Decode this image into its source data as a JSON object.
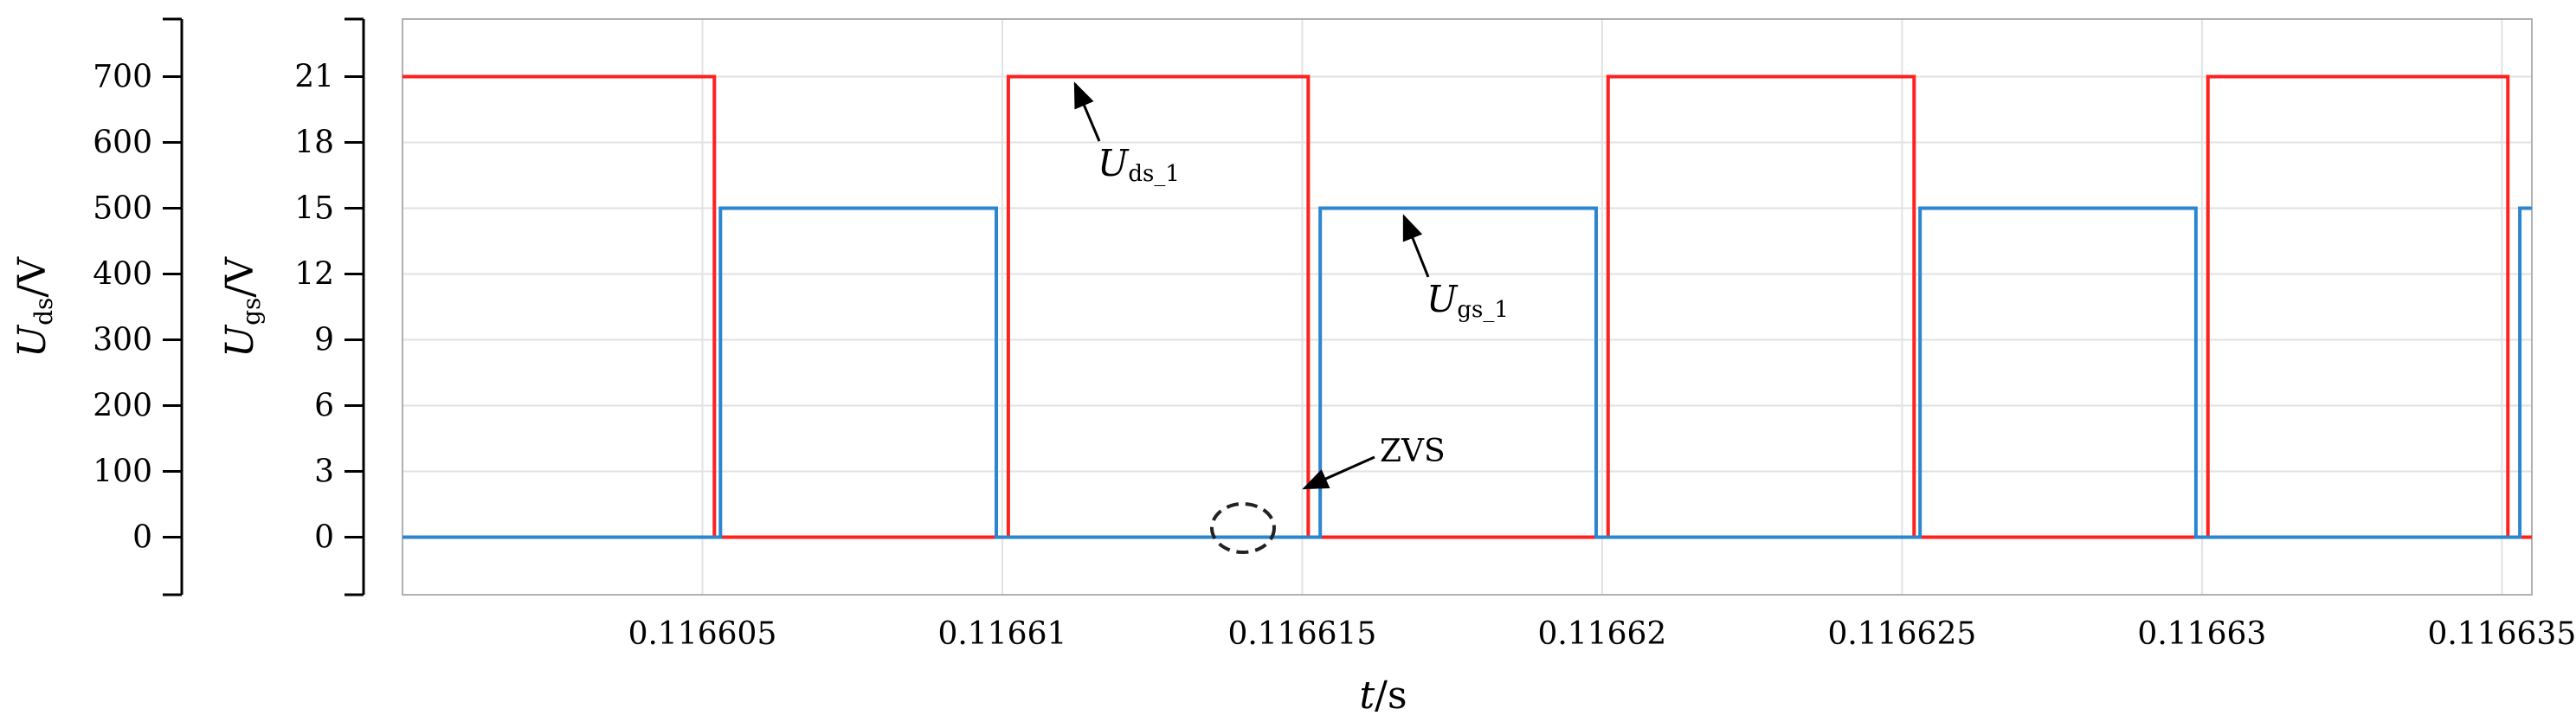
{
  "chart_data": {
    "type": "line",
    "title": "",
    "x": [
      0.1166,
      0.1166052,
      0.1166053,
      0.11661,
      0.1166101,
      0.116615,
      0.1166151,
      0.11662,
      0.1166201,
      0.1166252,
      0.1166253,
      0.11663,
      0.1166301,
      0.116635,
      0.1166351
    ],
    "series": [
      {
        "name": "U_ds_1",
        "axis": "left",
        "color": "#ff2020",
        "x": [
          0.1166,
          0.1166052,
          0.1166052,
          0.1166101,
          0.1166101,
          0.1166151,
          0.1166151,
          0.1166201,
          0.1166201,
          0.1166252,
          0.1166252,
          0.1166301,
          0.1166301,
          0.1166351,
          0.1166351,
          0.1166355
        ],
        "values": [
          700,
          700,
          0,
          0,
          700,
          700,
          0,
          0,
          700,
          700,
          0,
          0,
          700,
          700,
          0,
          0
        ]
      },
      {
        "name": "U_gs_1",
        "axis": "right-inner",
        "color": "#2b86cf",
        "x": [
          0.1166,
          0.1166052,
          0.1166053,
          0.1166053,
          0.1166099,
          0.1166099,
          0.1166153,
          0.1166153,
          0.1166199,
          0.1166199,
          0.1166253,
          0.1166253,
          0.1166299,
          0.1166299,
          0.1166353,
          0.1166353,
          0.1166355
        ],
        "values": [
          0,
          0,
          0,
          15,
          15,
          0,
          0,
          15,
          15,
          0,
          0,
          15,
          15,
          0,
          0,
          15,
          15
        ]
      }
    ],
    "xlabel": {
      "var": "t",
      "unit": "/s"
    },
    "xlim": [
      0.1166,
      0.1166355
    ],
    "xticks": [
      0.116605,
      0.11661,
      0.116615,
      0.11662,
      0.116625,
      0.11663,
      0.116635
    ],
    "xtick_labels": [
      "0.116605",
      "0.11661",
      "0.116615",
      "0.11662",
      "0.116625",
      "0.11663",
      "0.116635"
    ],
    "y_left": {
      "label_var": "U",
      "label_sub": "ds",
      "label_unit": "/V",
      "ylim": [
        -87.5,
        787.5
      ],
      "ticks": [
        0,
        100,
        200,
        300,
        400,
        500,
        600,
        700
      ],
      "tick_labels": [
        "0",
        "100",
        "200",
        "300",
        "400",
        "500",
        "600",
        "700"
      ]
    },
    "y_right": {
      "label_var": "U",
      "label_sub": "gs",
      "label_unit": "/V",
      "ylim": [
        -2.625,
        23.625
      ],
      "ticks": [
        0,
        3,
        6,
        9,
        12,
        15,
        18,
        21
      ],
      "tick_labels": [
        "0",
        "3",
        "6",
        "9",
        "12",
        "15",
        "18",
        "21"
      ]
    },
    "grid": true,
    "annotations": [
      {
        "text_var": "U",
        "text_sub": "ds_1",
        "target": "U_ds_1 high level"
      },
      {
        "text_var": "U",
        "text_sub": "gs_1",
        "target": "U_gs_1 high level"
      },
      {
        "text": "ZVS",
        "target": "switch at t = 0.116615"
      }
    ]
  }
}
